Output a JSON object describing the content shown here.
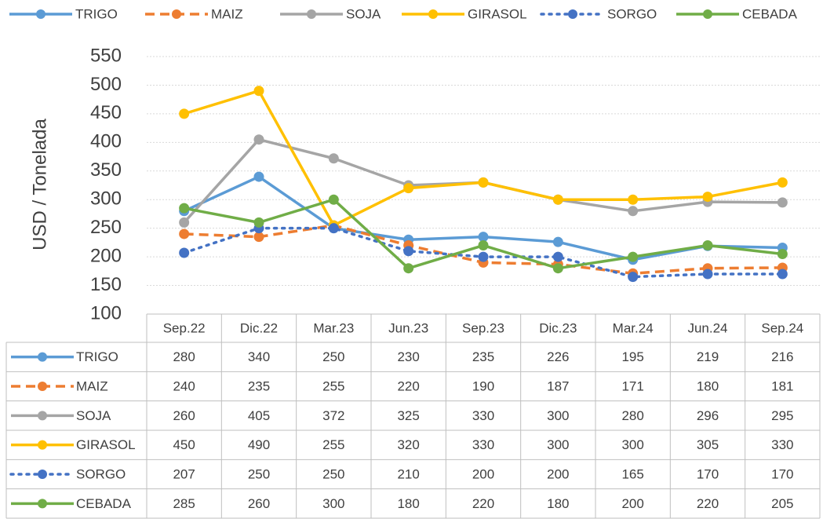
{
  "chart_data": {
    "type": "line",
    "y_label": "USD / Tonelada",
    "categories": [
      "Sep.22",
      "Dic.22",
      "Mar.23",
      "Jun.23",
      "Sep.23",
      "Dic.23",
      "Mar.24",
      "Jun.24",
      "Sep.24"
    ],
    "series": [
      {
        "name": "TRIGO",
        "color": "#5b9bd5",
        "line_style": "solid",
        "values": [
          280,
          340,
          250,
          230,
          235,
          226,
          195,
          219,
          216
        ]
      },
      {
        "name": "MAIZ",
        "color": "#ed7d31",
        "line_style": "dashed",
        "values": [
          240,
          235,
          255,
          220,
          190,
          187,
          171,
          180,
          181
        ]
      },
      {
        "name": "SOJA",
        "color": "#a5a5a5",
        "line_style": "solid",
        "values": [
          260,
          405,
          372,
          325,
          330,
          300,
          280,
          296,
          295
        ]
      },
      {
        "name": "GIRASOL",
        "color": "#ffc000",
        "line_style": "solid",
        "values": [
          450,
          490,
          255,
          320,
          330,
          300,
          300,
          305,
          330
        ]
      },
      {
        "name": "SORGO",
        "color": "#4472c4",
        "line_style": "dotted",
        "values": [
          207,
          250,
          250,
          210,
          200,
          200,
          165,
          170,
          170
        ]
      },
      {
        "name": "CEBADA",
        "color": "#70ad47",
        "line_style": "solid",
        "values": [
          285,
          260,
          300,
          180,
          220,
          180,
          200,
          220,
          205
        ]
      }
    ],
    "ylim": [
      100,
      550
    ],
    "yticks": [
      100,
      150,
      200,
      250,
      300,
      350,
      400,
      450,
      500,
      550
    ],
    "grid": true,
    "legend": "top",
    "data_table": true
  }
}
